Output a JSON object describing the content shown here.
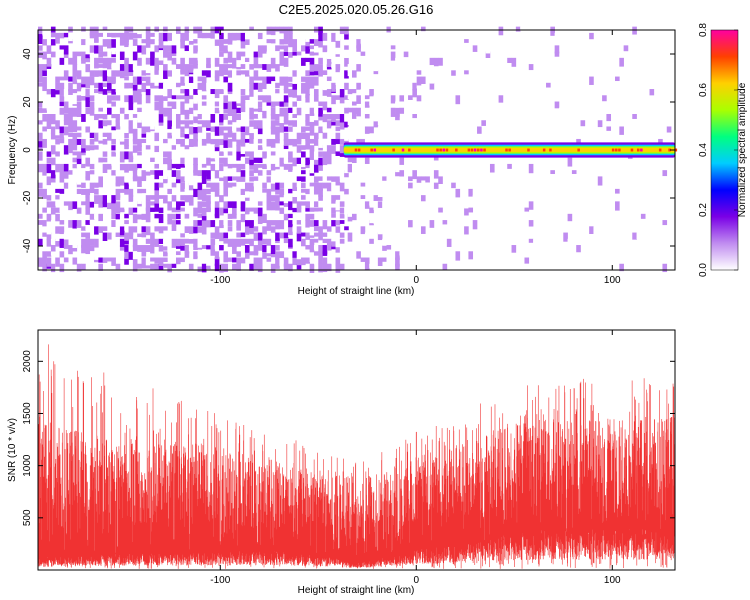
{
  "chart_data": [
    {
      "type": "heatmap",
      "title": "C2E5.2025.020.05.26.G16",
      "xlabel": "Height of straight line (km)",
      "ylabel": "Frequency (Hz)",
      "xlim": [
        -193,
        132
      ],
      "ylim": [
        -50,
        50
      ],
      "x_ticks": [
        -100,
        0,
        100
      ],
      "y_ticks": [
        -40,
        -20,
        0,
        20,
        40
      ],
      "colorbar": {
        "label": "Normalized spectral amplitude",
        "range": [
          0.0,
          0.8
        ],
        "ticks": [
          0.0,
          0.2,
          0.4,
          0.6,
          0.8
        ],
        "colors": [
          "#ffffff",
          "#c08cf0",
          "#7a00e6",
          "#0000ff",
          "#00ccff",
          "#00ff80",
          "#aaff00",
          "#ffd000",
          "#ff4000",
          "#ff00a0"
        ]
      },
      "noise_regions": [
        {
          "x_range": [
            -193,
            -35
          ],
          "amplitude": "dense, 0.0-0.15"
        },
        {
          "x_range": [
            -35,
            132
          ],
          "amplitude": "sparse, 0.0-0.08"
        }
      ],
      "signal_line": {
        "x_range": [
          -37,
          132
        ],
        "frequency_hz": 0,
        "peak_amplitude": 0.8
      }
    },
    {
      "type": "line",
      "title": "",
      "xlabel": "Height of straight line (km)",
      "ylabel": "SNR (10 * v/v)",
      "xlim": [
        -193,
        132
      ],
      "ylim": [
        0,
        2300
      ],
      "x_ticks": [
        -100,
        0,
        100
      ],
      "y_ticks": [
        500,
        1000,
        1500,
        2000
      ],
      "series": [
        {
          "color": "#f03232",
          "envelope": {
            "x": [
              -193,
              -170,
              -150,
              -130,
              -110,
              -90,
              -70,
              -50,
              -30,
              -10,
              0,
              20,
              40,
              60,
              80,
              100,
              120,
              132
            ],
            "lower": [
              100,
              120,
              130,
              140,
              150,
              150,
              150,
              120,
              60,
              120,
              180,
              220,
              270,
              320,
              320,
              340,
              330,
              300
            ],
            "upper": [
              1450,
              1350,
              1300,
              1250,
              1200,
              1150,
              1050,
              950,
              900,
              950,
              1100,
              1200,
              1350,
              1450,
              1450,
              1450,
              1480,
              1500
            ],
            "spike_max": [
              2250,
              1900,
              1950,
              1700,
              1600,
              1400,
              1300,
              1200,
              1100,
              1200,
              1350,
              1500,
              1700,
              1800,
              1850,
              1800,
              1850,
              1800
            ]
          }
        }
      ]
    }
  ]
}
